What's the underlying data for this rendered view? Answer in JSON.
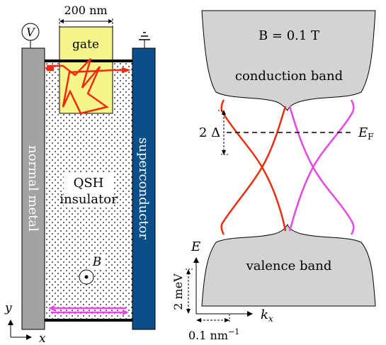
{
  "left": {
    "gate_width": "200 nm",
    "gate_label": "gate",
    "voltmeter_label": "V",
    "normal_label": "normal metal",
    "sc_label": "superconductor",
    "qsh_line1": "QSH",
    "qsh_line2": "insulator",
    "b_label": "B",
    "y_axis": "y",
    "x_axis": "x",
    "colors": {
      "normal_metal": "#a3a3a3",
      "superconductor": "#0b4f8a",
      "gate": "#f6f58c",
      "edge_path_top": "#ee2b10",
      "edge_path_bottom": "#ee44ee"
    }
  },
  "right": {
    "field_label": "B = 0.1 T",
    "conduction": "conduction band",
    "valence": "valence band",
    "gap_label": "2 Δ",
    "fermi_label": "E",
    "fermi_sub": "F",
    "energy_axis": "E",
    "momentum_axis": "k",
    "momentum_sub": "x",
    "energy_scale": "2 meV",
    "momentum_scale": "0.1 nm",
    "momentum_scale_exp": "−1",
    "colors": {
      "band_fill": "#d3d3d3",
      "red_branch": "#e8300f",
      "magenta_branch": "#e448e4"
    }
  }
}
